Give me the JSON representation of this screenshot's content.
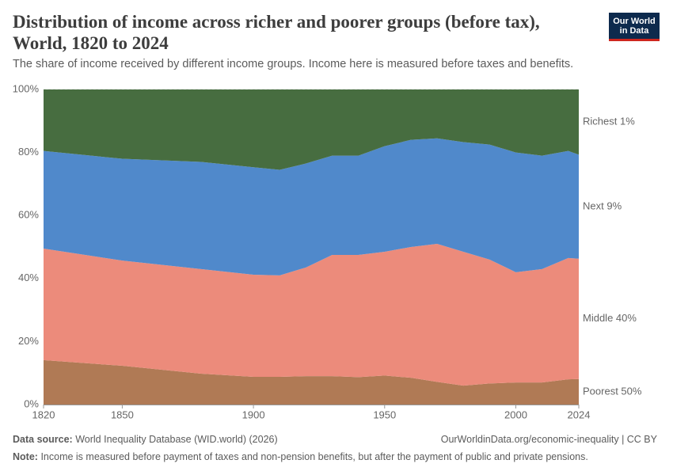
{
  "chart_data": {
    "type": "stacked-area",
    "title": "Distribution of income across richer and poorer groups (before tax), World, 1820 to 2024",
    "subtitle": "The share of income received by different income groups. Income here is measured before taxes and benefits.",
    "logo": "Our World in Data",
    "x": [
      1820,
      1850,
      1880,
      1900,
      1910,
      1920,
      1930,
      1940,
      1950,
      1960,
      1970,
      1980,
      1990,
      2000,
      2010,
      2020,
      2024
    ],
    "xlim": [
      1820,
      2024
    ],
    "xticks": [
      1820,
      1850,
      1900,
      1950,
      2000,
      2024
    ],
    "ylim": [
      0,
      100
    ],
    "yticks": [
      {
        "value": 0,
        "label": "0%"
      },
      {
        "value": 20,
        "label": "20%"
      },
      {
        "value": 40,
        "label": "40%"
      },
      {
        "value": 60,
        "label": "60%"
      },
      {
        "value": 80,
        "label": "80%"
      },
      {
        "value": 100,
        "label": "100%"
      }
    ],
    "grid": true,
    "series": [
      {
        "name": "Poorest 50%",
        "color": "#b07a55",
        "label_color": "#9a5f3c",
        "values": [
          14.1,
          12.3,
          9.8,
          8.8,
          8.8,
          9.0,
          9.0,
          8.7,
          9.2,
          8.5,
          7.2,
          6.0,
          6.7,
          7.0,
          7.0,
          8.0,
          8.1
        ]
      },
      {
        "name": "Middle 40%",
        "color": "#ec8b7b",
        "label_color": "#e0604c",
        "values": [
          35.4,
          33.4,
          33.2,
          32.4,
          32.2,
          34.5,
          38.5,
          38.8,
          39.3,
          41.5,
          43.8,
          42.5,
          39.3,
          35.0,
          36.0,
          38.5,
          38.2
        ]
      },
      {
        "name": "Next 9%",
        "color": "#5089cb",
        "label_color": "#3b6fb4",
        "values": [
          31.0,
          32.3,
          34.0,
          34.1,
          33.5,
          33.0,
          31.5,
          31.5,
          33.5,
          34.0,
          33.5,
          34.8,
          36.5,
          38.0,
          36.0,
          34.0,
          33.0
        ]
      },
      {
        "name": "Richest 1%",
        "color": "#476d40",
        "label_color": "#2f5a28",
        "values": [
          19.5,
          22.0,
          23.0,
          24.7,
          25.5,
          23.5,
          21.0,
          21.0,
          18.0,
          16.0,
          15.5,
          16.7,
          17.5,
          20.0,
          21.0,
          19.5,
          20.7
        ]
      }
    ],
    "source_label": "Data source:",
    "source": "World Inequality Database (WID.world) (2026)",
    "url": "OurWorldinData.org/economic-inequality | CC BY",
    "note_label": "Note:",
    "note": "Income is measured before payment of taxes and non-pension benefits, but after the payment of public and private pensions."
  }
}
